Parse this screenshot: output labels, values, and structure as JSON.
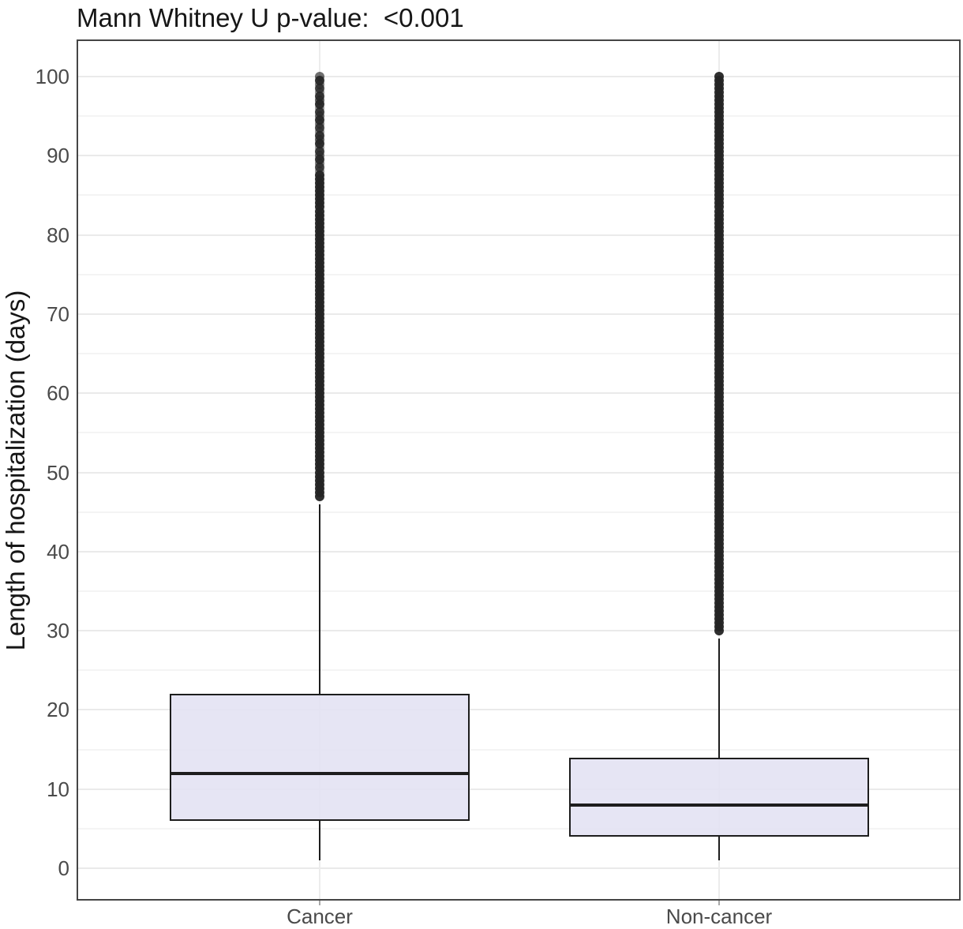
{
  "chart_data": {
    "type": "box",
    "title": "Mann Whitney U p-value:  <0.001",
    "ylabel": "Length of hospitalization (days)",
    "xlabel": "",
    "ylim": [
      0,
      100
    ],
    "yticks": [
      0,
      10,
      20,
      30,
      40,
      50,
      60,
      70,
      80,
      90,
      100
    ],
    "grid": {
      "horizontal_major_step": 10,
      "horizontal_minor_step": 5,
      "vertical_at_categories": true
    },
    "legend": "none",
    "categories": [
      "Cancer",
      "Non-cancer"
    ],
    "series": [
      {
        "name": "Cancer",
        "whisker_low": 1,
        "q1": 6,
        "median": 12,
        "q3": 22,
        "whisker_high": 46,
        "outliers": {
          "min": 47,
          "max": 100,
          "render_step": 0.5
        },
        "outlier_fade_above": 88
      },
      {
        "name": "Non-cancer",
        "whisker_low": 1,
        "q1": 4,
        "median": 8,
        "q3": 14,
        "whisker_high": 29,
        "outliers": {
          "min": 30,
          "max": 100,
          "render_step": 0.5
        }
      }
    ],
    "colors": {
      "background": "#ffffff",
      "box_fill": "#e3e1f3",
      "box_border": "#1d1d1d",
      "median": "#1d1d1d",
      "whisker": "#1d1d1d",
      "outlier_dot": "#242424",
      "grid_major": "#eaeaea",
      "grid_minor": "#f4f4f4",
      "panel_border": "#454545",
      "tick_label": "#4a4a4a",
      "title_text": "#161616"
    }
  }
}
